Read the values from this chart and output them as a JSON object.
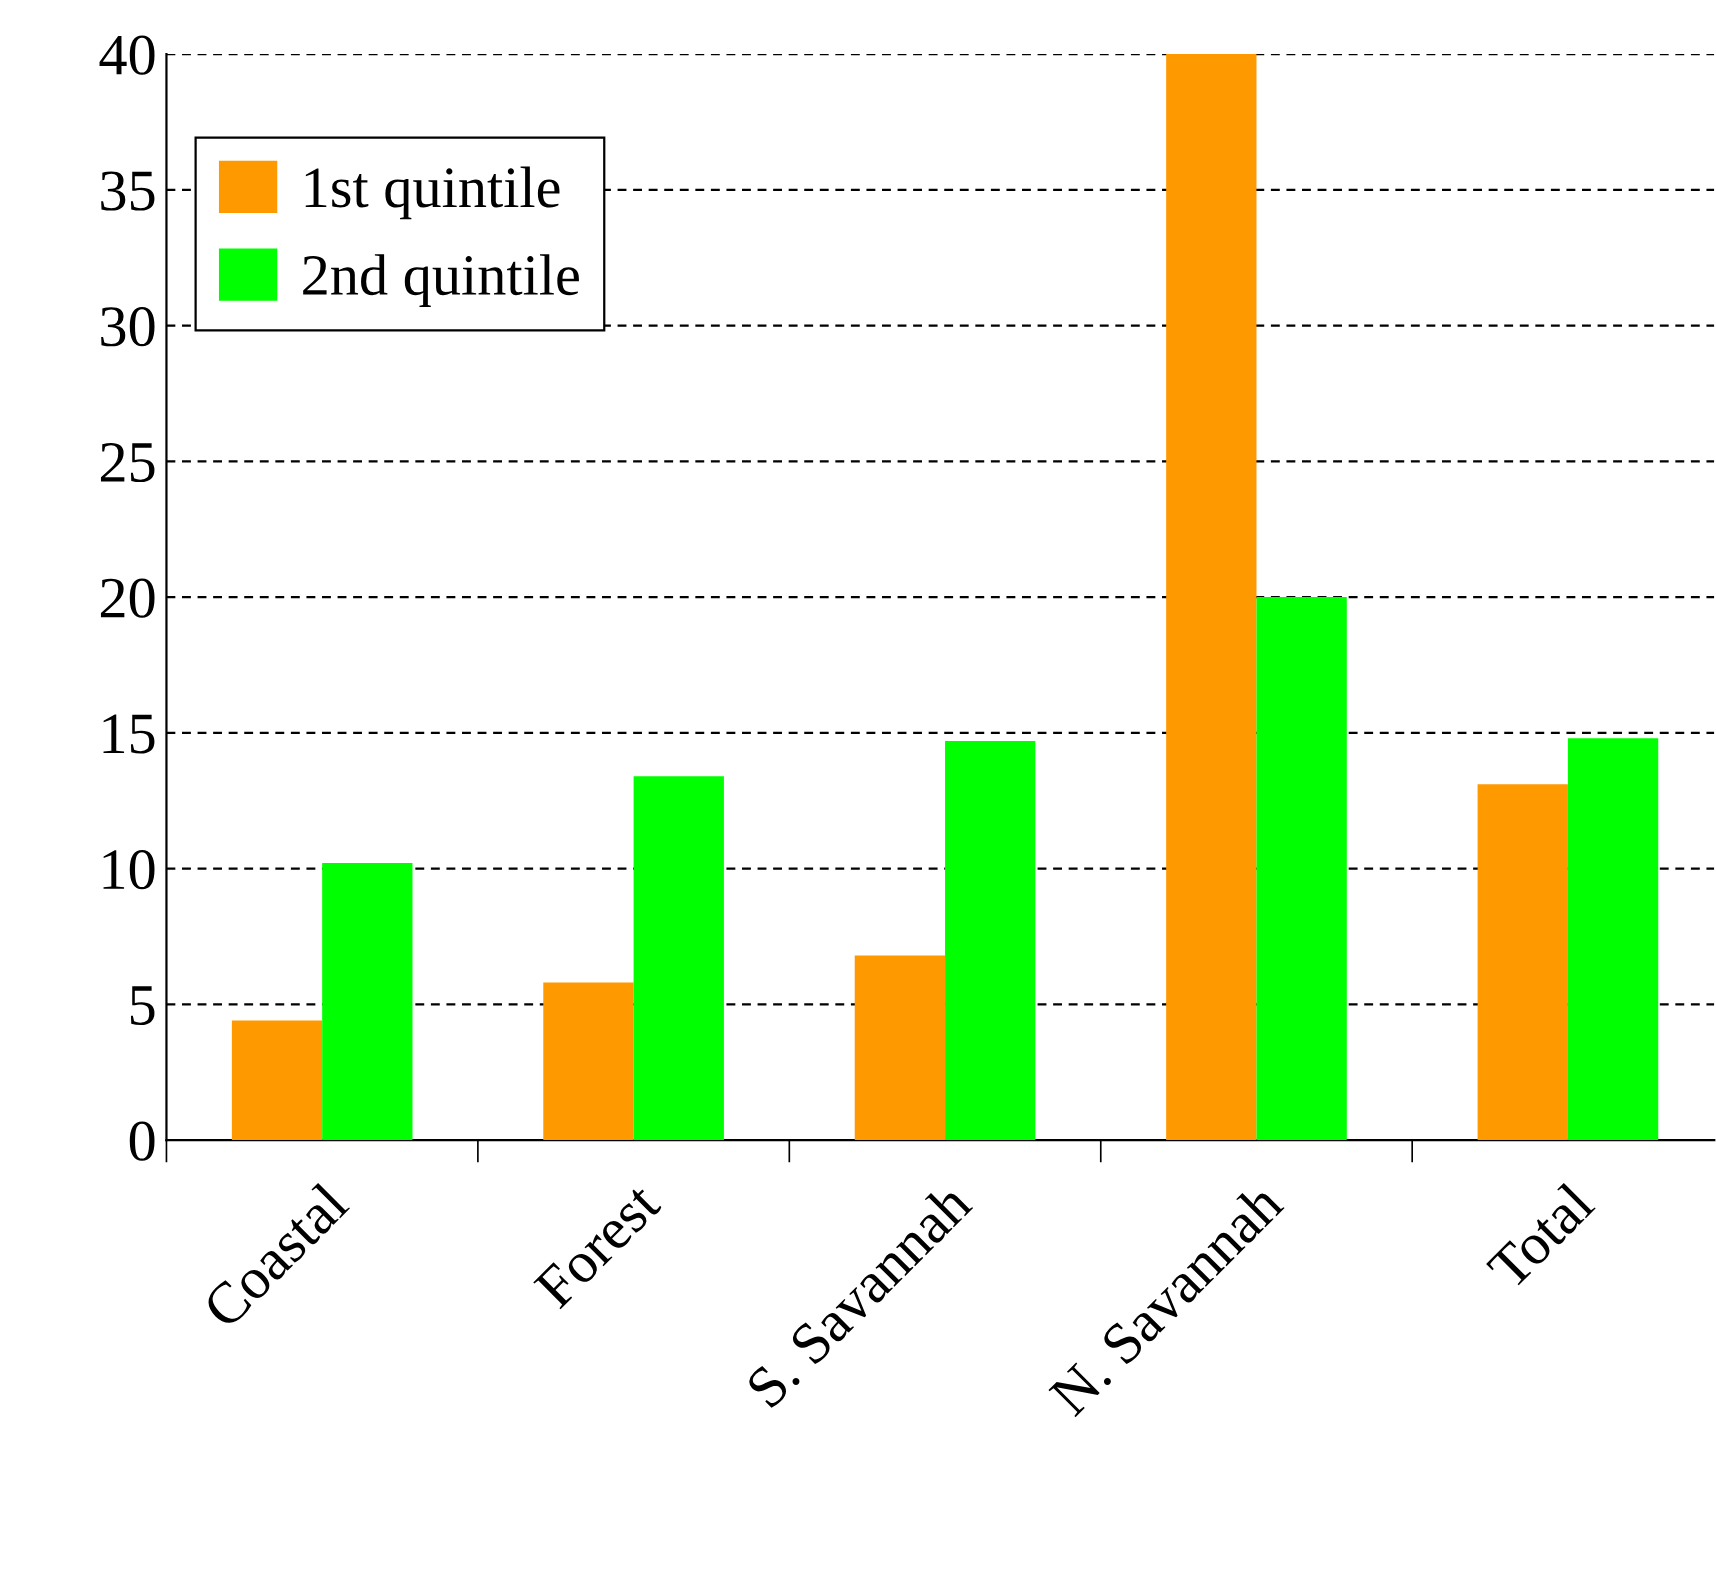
{
  "chart_data": {
    "type": "bar",
    "categories": [
      "Coastal",
      "Forest",
      "S. Savannah",
      "N. Savannah",
      "Total"
    ],
    "series": [
      {
        "name": "1st quintile",
        "color": "#ff9900",
        "values": [
          4.4,
          5.8,
          6.8,
          40.0,
          13.1
        ]
      },
      {
        "name": "2nd quintile",
        "color": "#00ff00",
        "values": [
          10.2,
          13.4,
          14.7,
          20.0,
          14.8
        ]
      }
    ],
    "ylim": [
      0,
      40
    ],
    "yticks": [
      0,
      5,
      10,
      15,
      20,
      25,
      30,
      35,
      40
    ],
    "grid": "y",
    "legend": "top left"
  }
}
